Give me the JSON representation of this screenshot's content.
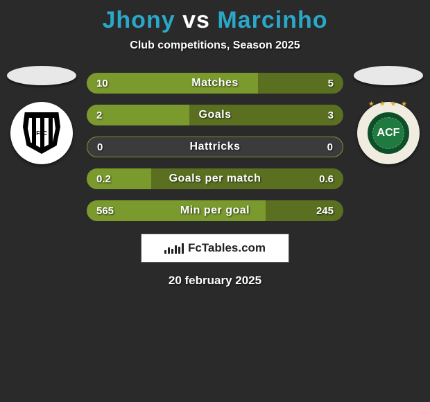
{
  "title": {
    "player1": "Jhony",
    "vs": "vs",
    "player2": "Marcinho"
  },
  "title_colors": {
    "player1": "#2aa8c9",
    "vs": "#ffffff",
    "player2": "#2aa8c9"
  },
  "subtitle": "Club competitions, Season 2025",
  "background_color": "#2a2a2a",
  "bar_colors": {
    "left": "#7a9a2e",
    "right": "#5a7020",
    "track": "#3b3b3b"
  },
  "flag_colors": {
    "left": "#e8e8e8",
    "right": "#e8e8e8"
  },
  "crest_text": {
    "left": "FFC",
    "right": "ACF"
  },
  "stats": [
    {
      "label": "Matches",
      "left_value": "10",
      "right_value": "5",
      "left_pct": 66.7,
      "right_pct": 33.3,
      "filled": true
    },
    {
      "label": "Goals",
      "left_value": "2",
      "right_value": "3",
      "left_pct": 40.0,
      "right_pct": 60.0,
      "filled": true
    },
    {
      "label": "Hattricks",
      "left_value": "0",
      "right_value": "0",
      "left_pct": 0,
      "right_pct": 0,
      "filled": false
    },
    {
      "label": "Goals per match",
      "left_value": "0.2",
      "right_value": "0.6",
      "left_pct": 25.0,
      "right_pct": 75.0,
      "filled": true
    },
    {
      "label": "Min per goal",
      "left_value": "565",
      "right_value": "245",
      "left_pct": 69.8,
      "right_pct": 30.2,
      "filled": true
    }
  ],
  "brand": "FcTables.com",
  "date": "20 february 2025"
}
